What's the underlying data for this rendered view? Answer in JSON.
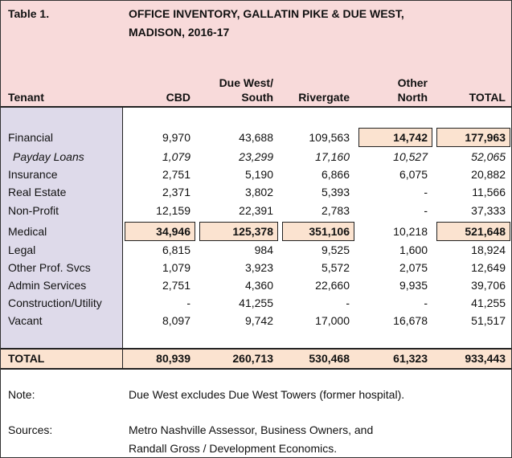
{
  "table": {
    "label": "Table 1.",
    "title": [
      "OFFICE INVENTORY, GALLATIN PIKE & DUE WEST,",
      "MADISON, 2016-17"
    ],
    "headers": [
      [
        "Tenant"
      ],
      [
        "CBD"
      ],
      [
        "Due West/",
        "South"
      ],
      [
        "Rivergate"
      ],
      [
        "Other",
        "North"
      ],
      [
        "TOTAL"
      ]
    ],
    "rows": [
      {
        "cells": [
          "Financial",
          "9,970",
          "43,688",
          "109,563",
          "14,742",
          "177,963"
        ],
        "highlight": [
          4,
          5
        ]
      },
      {
        "cells": [
          "Payday Loans",
          "1,079",
          "23,299",
          "17,160",
          "10,527",
          "52,065"
        ],
        "italic": true
      },
      {
        "cells": [
          "Insurance",
          "2,751",
          "5,190",
          "6,866",
          "6,075",
          "20,882"
        ]
      },
      {
        "cells": [
          "Real Estate",
          "2,371",
          "3,802",
          "5,393",
          "-",
          "11,566"
        ]
      },
      {
        "cells": [
          "Non-Profit",
          "12,159",
          "22,391",
          "2,783",
          "-",
          "37,333"
        ]
      },
      {
        "cells": [
          "Medical",
          "34,946",
          "125,378",
          "351,106",
          "10,218",
          "521,648"
        ],
        "highlight": [
          1,
          2,
          3,
          5
        ]
      },
      {
        "cells": [
          "Legal",
          "6,815",
          "984",
          "9,525",
          "1,600",
          "18,924"
        ]
      },
      {
        "cells": [
          "Other Prof. Svcs",
          "1,079",
          "3,923",
          "5,572",
          "2,075",
          "12,649"
        ]
      },
      {
        "cells": [
          "Admin Services",
          "2,751",
          "4,360",
          "22,660",
          "9,935",
          "39,706"
        ]
      },
      {
        "cells": [
          "Construction/Utility",
          "-",
          "41,255",
          "-",
          "-",
          "41,255"
        ]
      },
      {
        "cells": [
          "Vacant",
          "8,097",
          "9,742",
          "17,000",
          "16,678",
          "51,517"
        ]
      }
    ],
    "total": [
      "TOTAL",
      "80,939",
      "260,713",
      "530,468",
      "61,323",
      "933,443"
    ],
    "note_label": "Note:",
    "note": "Due West excludes Due West Towers (former hospital).",
    "sources_label": "Sources:",
    "sources": [
      "Metro Nashville Assessor, Business Owners, and",
      "Randall Gross / Development Economics."
    ]
  }
}
